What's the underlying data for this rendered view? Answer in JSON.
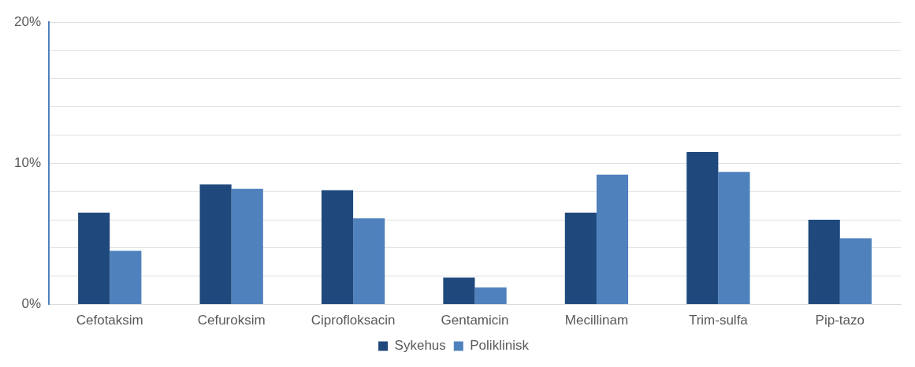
{
  "chart_data": {
    "type": "bar",
    "categories": [
      "Cefotaksim",
      "Cefuroksim",
      "Ciprofloksacin",
      "Gentamicin",
      "Mecillinam",
      "Trim-sulfa",
      "Pip-tazo"
    ],
    "series": [
      {
        "name": "Sykehus",
        "color": "#1f497d",
        "values": [
          6.5,
          8.5,
          8.1,
          1.9,
          6.5,
          10.8,
          6.0
        ]
      },
      {
        "name": "Poliklinisk",
        "color": "#4f81bd",
        "values": [
          3.8,
          8.2,
          6.1,
          1.2,
          9.2,
          9.4,
          4.7
        ]
      }
    ],
    "ylim": [
      0,
      20
    ],
    "yticks": [
      {
        "value": 0,
        "label": "0%"
      },
      {
        "value": 2,
        "label": null
      },
      {
        "value": 4,
        "label": null
      },
      {
        "value": 6,
        "label": null
      },
      {
        "value": 8,
        "label": null
      },
      {
        "value": 10,
        "label": "10%"
      },
      {
        "value": 12,
        "label": null
      },
      {
        "value": 14,
        "label": null
      },
      {
        "value": 16,
        "label": null
      },
      {
        "value": 18,
        "label": null
      },
      {
        "value": 20,
        "label": "20%"
      }
    ],
    "grid": "y",
    "legend": "bottom"
  }
}
